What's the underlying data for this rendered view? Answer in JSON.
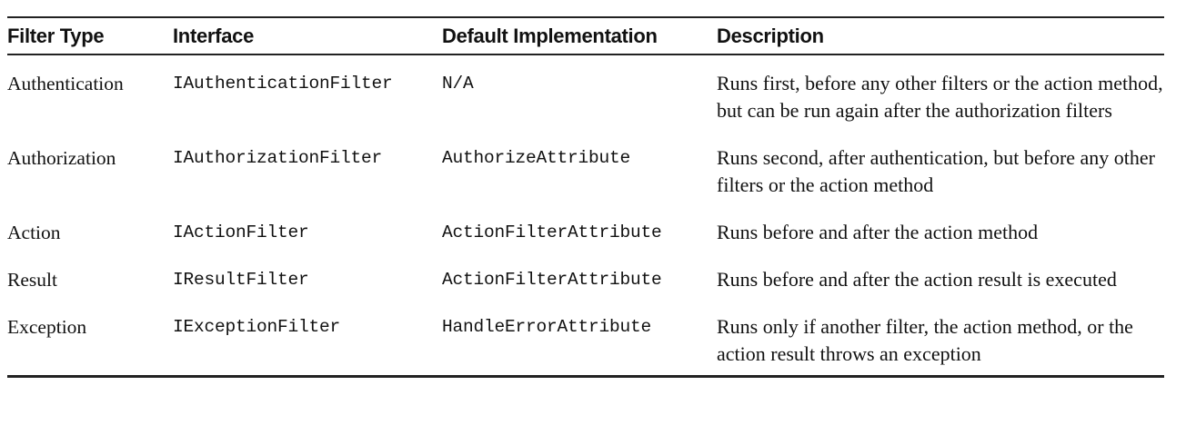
{
  "table": {
    "headers": [
      "Filter Type",
      "Interface",
      "Default Implementation",
      "Description"
    ],
    "rows": [
      {
        "filter_type": "Authentication",
        "interface": "IAuthenticationFilter",
        "default_implementation": "N/A",
        "description": "Runs first, before any other filters or the action method, but can be run again after the authorization filters"
      },
      {
        "filter_type": "Authorization",
        "interface": "IAuthorizationFilter",
        "default_implementation": "AuthorizeAttribute",
        "description": "Runs second, after authentication, but before any other filters or the action method"
      },
      {
        "filter_type": "Action",
        "interface": "IActionFilter",
        "default_implementation": "ActionFilterAttribute",
        "description": "Runs before and after the action method"
      },
      {
        "filter_type": "Result",
        "interface": "IResultFilter",
        "default_implementation": "ActionFilterAttribute",
        "description": "Runs before and after the action result is executed"
      },
      {
        "filter_type": "Exception",
        "interface": "IExceptionFilter",
        "default_implementation": "HandleErrorAttribute",
        "description": "Runs only if another filter, the action method, or the action result throws an exception"
      }
    ]
  }
}
